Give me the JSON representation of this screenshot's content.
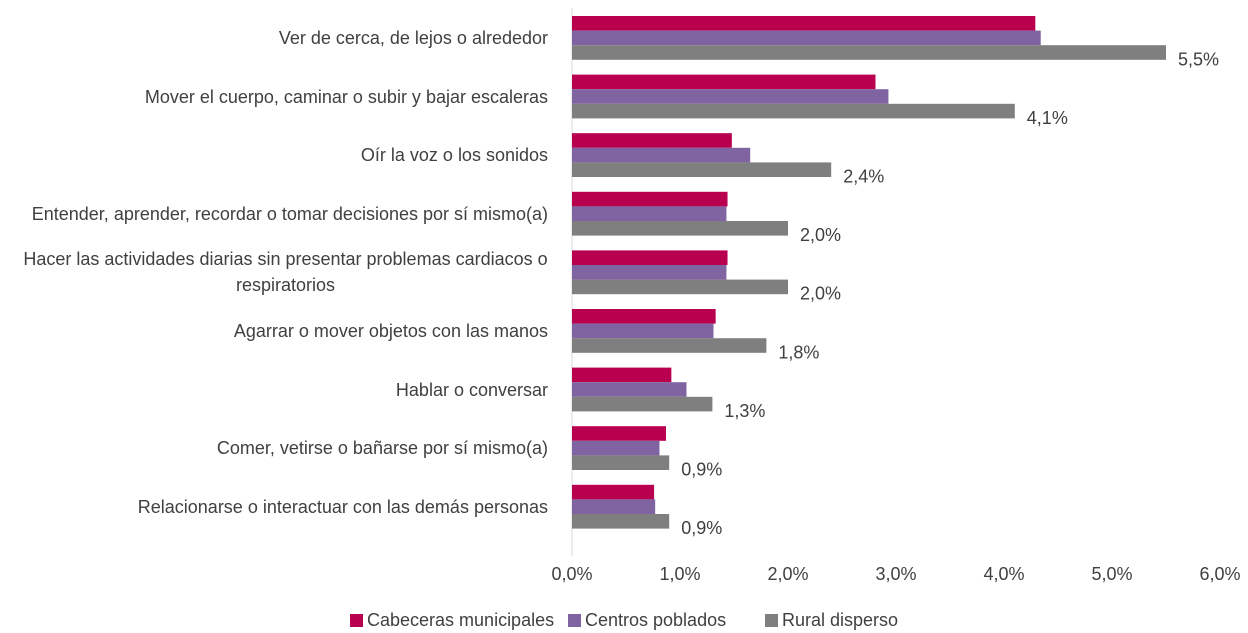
{
  "chart_data": {
    "type": "hbar",
    "categories": [
      "Ver de cerca, de lejos o alrededor",
      "Mover el cuerpo, caminar o subir y bajar escaleras",
      "Oír la voz o los sonidos",
      "Entender, aprender, recordar o tomar decisiones por sí mismo(a)",
      "Hacer las actividades diarias sin presentar problemas cardiacos o respiratorios",
      "Agarrar o mover objetos con las manos",
      "Hablar o conversar",
      "Comer, vetirse o bañarse por sí mismo(a)",
      "Relacionarse o interactuar con las demás personas"
    ],
    "series": [
      {
        "name": "Cabeceras municipales",
        "color": "#b8004f",
        "values": [
          4.29,
          2.81,
          1.48,
          1.44,
          1.44,
          1.33,
          0.92,
          0.87,
          0.76
        ]
      },
      {
        "name": "Centros poblados",
        "color": "#8064a2",
        "values": [
          4.34,
          2.93,
          1.65,
          1.43,
          1.43,
          1.31,
          1.06,
          0.81,
          0.77
        ]
      },
      {
        "name": "Rural disperso",
        "color": "#7f7f7f",
        "values": [
          5.5,
          4.1,
          2.4,
          2.0,
          2.0,
          1.8,
          1.3,
          0.9,
          0.9
        ],
        "value_labels": [
          "5,5%",
          "4,1%",
          "2,4%",
          "2,0%",
          "2,0%",
          "1,8%",
          "1,3%",
          "0,9%",
          "0,9%"
        ]
      }
    ],
    "xlim": [
      0,
      6
    ],
    "xticks": [
      {
        "value": 0,
        "label": "0,0%"
      },
      {
        "value": 1,
        "label": "1,0%"
      },
      {
        "value": 2,
        "label": "2,0%"
      },
      {
        "value": 3,
        "label": "3,0%"
      },
      {
        "value": 4,
        "label": "4,0%"
      },
      {
        "value": 5,
        "label": "5,0%"
      },
      {
        "value": 6,
        "label": "6,0%"
      }
    ],
    "grid": false,
    "legend": "bottom"
  }
}
